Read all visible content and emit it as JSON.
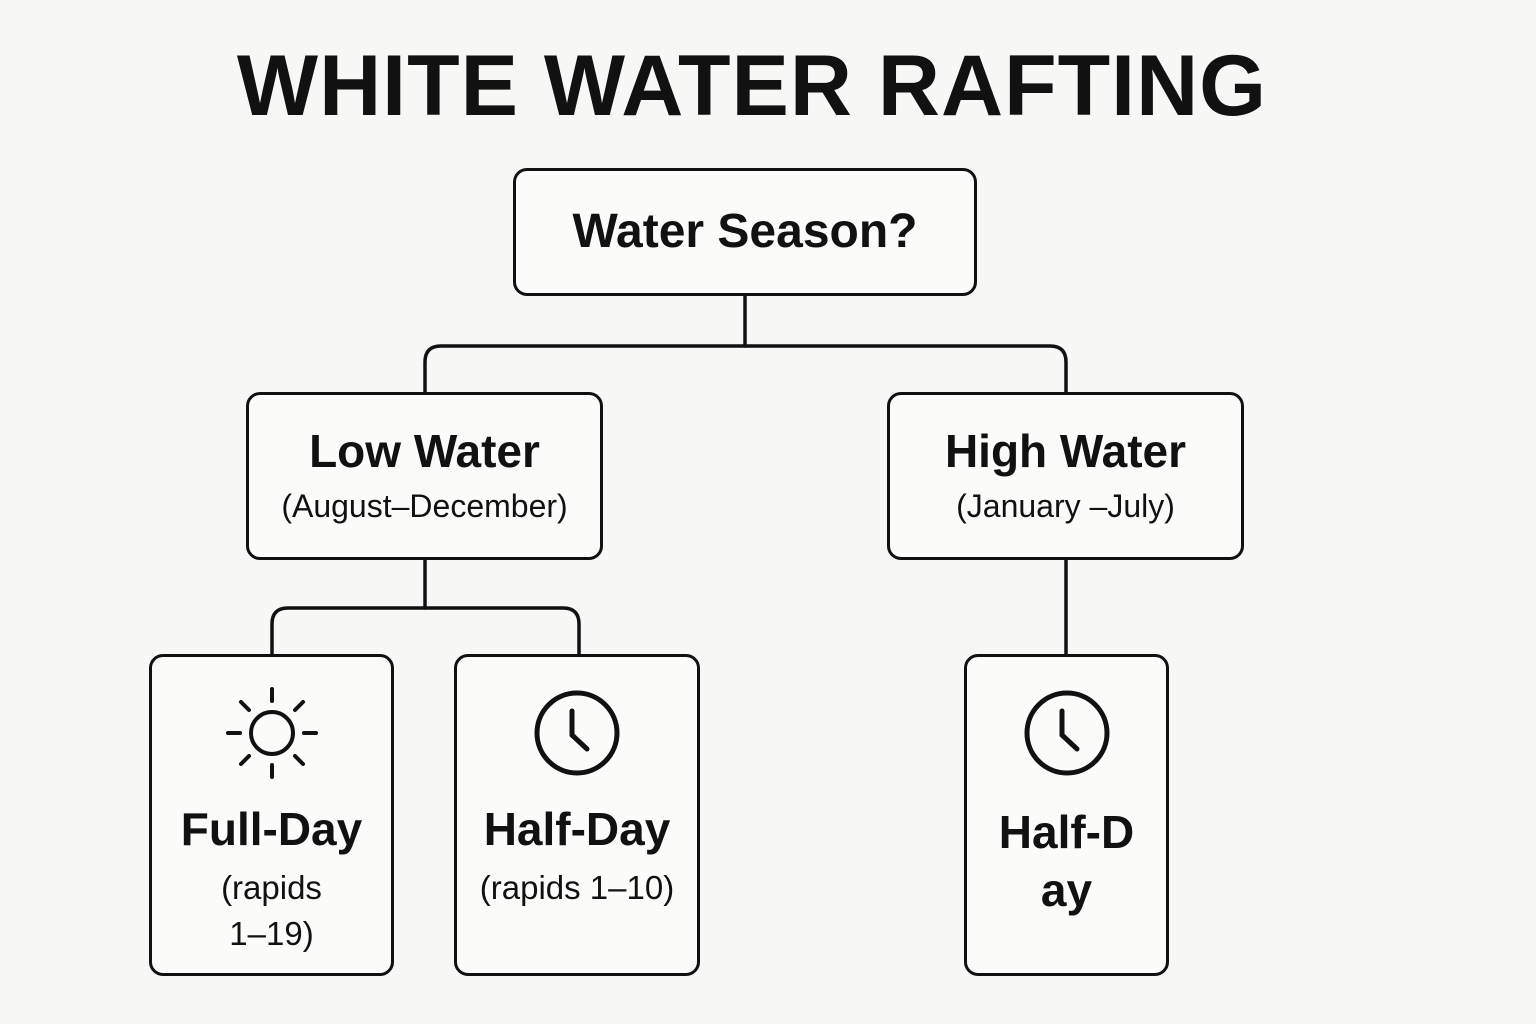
{
  "title": "WHITE WATER RAFTING",
  "root": {
    "label": "Water Season?"
  },
  "branches": [
    {
      "label": "Low Water",
      "months": "(August–December)",
      "options": [
        {
          "label": "Full-Day",
          "detail": "(rapids 1–19)",
          "icon": "sun-icon"
        },
        {
          "label": "Half-Day",
          "detail": "(rapids 1–10)",
          "icon": "clock-icon"
        }
      ]
    },
    {
      "label": "High Water",
      "months": "(January –July)",
      "options": [
        {
          "label": "Half-Day",
          "detail": "",
          "icon": "clock-icon"
        }
      ]
    }
  ],
  "colors": {
    "background": "#f7f7f5",
    "stroke": "#111111"
  }
}
